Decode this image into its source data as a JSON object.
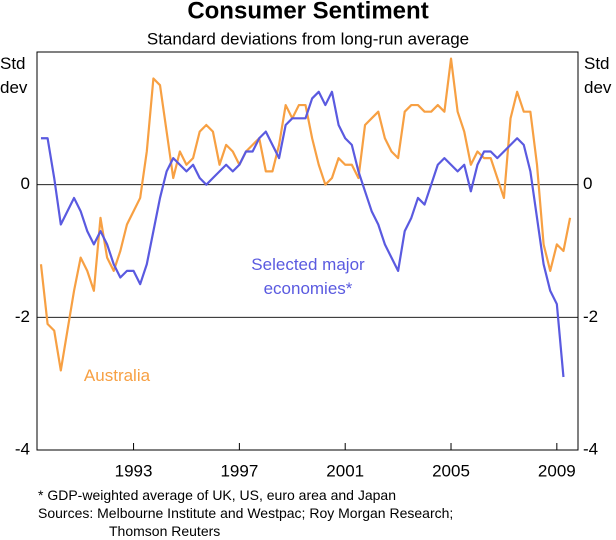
{
  "chart_data": {
    "type": "line",
    "title": "Consumer Sentiment",
    "subtitle": "Standard deviations from long-run average",
    "ylabel": "Std dev",
    "y2label": "Std dev",
    "x": [
      1989.5,
      1989.75,
      1990,
      1990.25,
      1990.5,
      1990.75,
      1991,
      1991.25,
      1991.5,
      1991.75,
      1992,
      1992.25,
      1992.5,
      1992.75,
      1993,
      1993.25,
      1993.5,
      1993.75,
      1994,
      1994.25,
      1994.5,
      1994.75,
      1995,
      1995.25,
      1995.5,
      1995.75,
      1996,
      1996.25,
      1996.5,
      1996.75,
      1997,
      1997.25,
      1997.5,
      1997.75,
      1998,
      1998.25,
      1998.5,
      1998.75,
      1999,
      1999.25,
      1999.5,
      1999.75,
      2000,
      2000.25,
      2000.5,
      2000.75,
      2001,
      2001.25,
      2001.5,
      2001.75,
      2002,
      2002.25,
      2002.5,
      2002.75,
      2003,
      2003.25,
      2003.5,
      2003.75,
      2004,
      2004.25,
      2004.5,
      2004.75,
      2005,
      2005.25,
      2005.5,
      2005.75,
      2006,
      2006.25,
      2006.5,
      2006.75,
      2007,
      2007.25,
      2007.5,
      2007.75,
      2008,
      2008.25,
      2008.5,
      2008.75,
      2009,
      2009.25,
      2009.5
    ],
    "series": [
      {
        "name": "Australia",
        "color": "#f7a043",
        "values": [
          -1.2,
          -2.1,
          -2.2,
          -2.8,
          -2.2,
          -1.6,
          -1.1,
          -1.3,
          -1.6,
          -0.5,
          -1.1,
          -1.3,
          -1.0,
          -0.6,
          -0.4,
          -0.2,
          0.5,
          1.6,
          1.5,
          0.8,
          0.1,
          0.5,
          0.3,
          0.4,
          0.8,
          0.9,
          0.8,
          0.3,
          0.6,
          0.5,
          0.3,
          0.5,
          0.6,
          0.7,
          0.2,
          0.2,
          0.6,
          1.2,
          1.0,
          1.2,
          1.2,
          0.7,
          0.3,
          0.0,
          0.1,
          0.4,
          0.3,
          0.3,
          0.1,
          0.9,
          1.0,
          1.1,
          0.7,
          0.5,
          0.4,
          1.1,
          1.2,
          1.2,
          1.1,
          1.1,
          1.2,
          1.1,
          1.9,
          1.1,
          0.8,
          0.3,
          0.5,
          0.4,
          0.4,
          0.1,
          -0.2,
          1.0,
          1.4,
          1.1,
          1.1,
          0.3,
          -0.9,
          -1.3,
          -0.9,
          -1.0,
          -0.5
        ]
      },
      {
        "name": "Selected major economies*",
        "color": "#5a5ae0",
        "values": [
          0.7,
          0.7,
          0.1,
          -0.6,
          -0.4,
          -0.2,
          -0.4,
          -0.7,
          -0.9,
          -0.7,
          -0.9,
          -1.2,
          -1.4,
          -1.3,
          -1.3,
          -1.5,
          -1.2,
          -0.7,
          -0.2,
          0.2,
          0.4,
          0.3,
          0.2,
          0.3,
          0.1,
          0.0,
          0.1,
          0.2,
          0.3,
          0.2,
          0.3,
          0.5,
          0.5,
          0.7,
          0.8,
          0.6,
          0.4,
          0.9,
          1.0,
          1.0,
          1.0,
          1.3,
          1.4,
          1.2,
          1.4,
          0.9,
          0.7,
          0.6,
          0.2,
          -0.1,
          -0.4,
          -0.6,
          -0.9,
          -1.1,
          -1.3,
          -0.7,
          -0.5,
          -0.2,
          -0.3,
          0.0,
          0.3,
          0.4,
          0.3,
          0.2,
          0.3,
          -0.1,
          0.3,
          0.5,
          0.5,
          0.4,
          0.5,
          0.6,
          0.7,
          0.6,
          0.2,
          -0.5,
          -1.2,
          -1.6,
          -1.8,
          -2.9,
          null
        ]
      }
    ],
    "xlim": [
      1989.35,
      2009.8
    ],
    "xticks": [
      1993,
      1997,
      2001,
      2005,
      2009
    ],
    "ylim": [
      -4,
      2
    ],
    "yticks": [
      -4,
      -2,
      0
    ],
    "y2lim": [
      -4,
      2
    ],
    "y2ticks": [
      -4,
      -2,
      0
    ],
    "grid": true,
    "footnote": "*  GDP-weighted average of UK, US, euro area and Japan",
    "sources": [
      "Sources: Melbourne Institute and Westpac; Roy Morgan Research;",
      "Thomson Reuters"
    ]
  }
}
